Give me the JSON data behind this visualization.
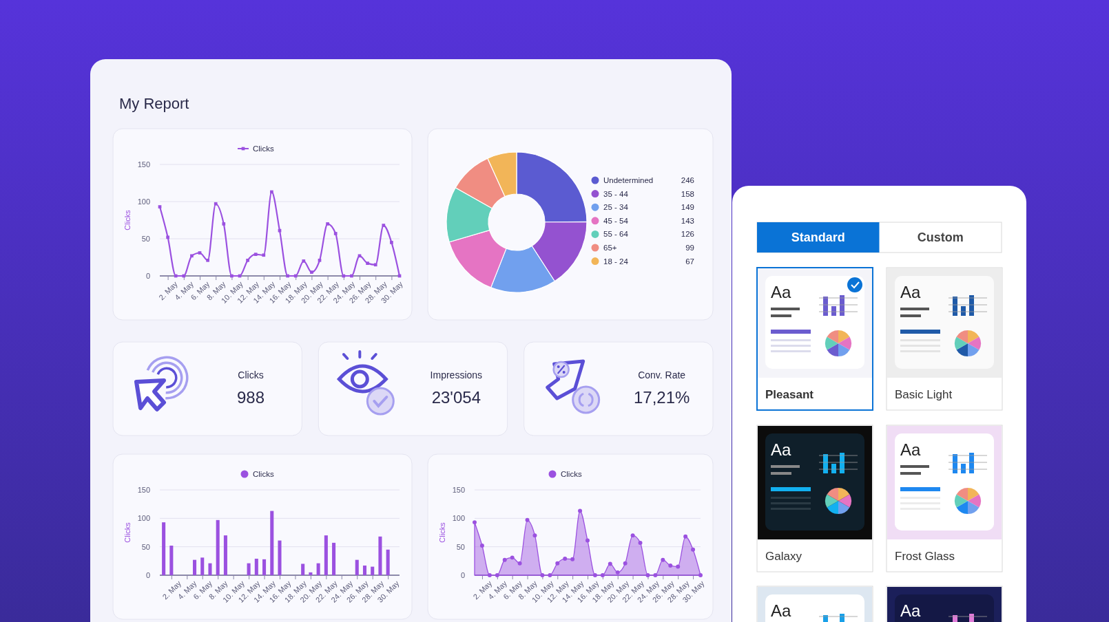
{
  "chart_data": [
    {
      "type": "line",
      "title": "My Report",
      "categories": [
        null,
        "2. May",
        null,
        "4. May",
        null,
        "6. May",
        null,
        "8. May",
        null,
        "10. May",
        null,
        "12. May",
        null,
        "14. May",
        null,
        "16. May",
        null,
        "18. May",
        null,
        "20. May",
        null,
        "22. May",
        null,
        "24. May",
        null,
        "26. May",
        null,
        "28. May",
        null,
        "30. May",
        null
      ],
      "series": [
        {
          "name": "Clicks",
          "color": "#9b51e0",
          "values": [
            93,
            52,
            0,
            0,
            27,
            31,
            21,
            97,
            70,
            0,
            0,
            21,
            29,
            28,
            113,
            61,
            0,
            0,
            20,
            5,
            21,
            70,
            57,
            0,
            0,
            27,
            17,
            15,
            68,
            45,
            0
          ]
        }
      ],
      "ylabel": "Clicks",
      "ylim": [
        0,
        150
      ],
      "yticks": [
        0,
        50,
        100,
        150
      ],
      "grid": "y",
      "legend": "top",
      "marker": "square"
    },
    {
      "type": "donut",
      "categories": [
        "Undetermined",
        "35 - 44",
        "25 - 34",
        "45 - 54",
        "55 - 64",
        "65+",
        "18 - 24"
      ],
      "values": [
        246,
        158,
        149,
        143,
        126,
        99,
        67
      ],
      "colors": [
        "#5b5bd1",
        "#9452d0",
        "#71a0ee",
        "#e574c3",
        "#62cfba",
        "#f08d82",
        "#f2b558"
      ],
      "legend": "right",
      "data_labels": true
    },
    {
      "type": "other",
      "categories": [
        "Clicks",
        "Impressions",
        "Conv. Rate"
      ],
      "annotations": [
        "988",
        "23'054",
        "17,21%"
      ]
    },
    {
      "type": "bar",
      "categories": [
        null,
        "2. May",
        null,
        "4. May",
        null,
        "6. May",
        null,
        "8. May",
        null,
        "10. May",
        null,
        "12. May",
        null,
        "14. May",
        null,
        "16. May",
        null,
        "18. May",
        null,
        "20. May",
        null,
        "22. May",
        null,
        "24. May",
        null,
        "26. May",
        null,
        "28. May",
        null,
        "30. May",
        null
      ],
      "series": [
        {
          "name": "Clicks",
          "color": "#9b51e0",
          "values": [
            93,
            52,
            0,
            0,
            27,
            31,
            21,
            97,
            70,
            0,
            0,
            21,
            29,
            28,
            113,
            61,
            0,
            0,
            20,
            5,
            21,
            70,
            57,
            0,
            0,
            27,
            17,
            15,
            68,
            45,
            0
          ]
        }
      ],
      "ylabel": "Clicks",
      "ylim": [
        0,
        150
      ],
      "yticks": [
        0,
        50,
        100,
        150
      ],
      "grid": "y",
      "legend": "top"
    },
    {
      "type": "area",
      "categories": [
        null,
        "2. May",
        null,
        "4. May",
        null,
        "6. May",
        null,
        "8. May",
        null,
        "10. May",
        null,
        "12. May",
        null,
        "14. May",
        null,
        "16. May",
        null,
        "18. May",
        null,
        "20. May",
        null,
        "22. May",
        null,
        "24. May",
        null,
        "26. May",
        null,
        "28. May",
        null,
        "30. May",
        null
      ],
      "series": [
        {
          "name": "Clicks",
          "color": "#9b51e0",
          "values": [
            93,
            52,
            0,
            0,
            27,
            31,
            21,
            97,
            70,
            0,
            0,
            21,
            29,
            28,
            113,
            61,
            0,
            0,
            20,
            5,
            21,
            70,
            57,
            0,
            0,
            27,
            17,
            15,
            68,
            45,
            0
          ]
        }
      ],
      "ylabel": "Clicks",
      "ylim": [
        0,
        150
      ],
      "yticks": [
        0,
        50,
        100,
        150
      ],
      "grid": "y",
      "legend": "top",
      "marker": "circle"
    },
    {
      "type": "other",
      "categories": [
        "Pleasant",
        "Basic Light",
        "Galaxy",
        "Frost Glass",
        null,
        null
      ],
      "annotations": [
        "Standard",
        "Custom",
        "Aa"
      ]
    }
  ]
}
